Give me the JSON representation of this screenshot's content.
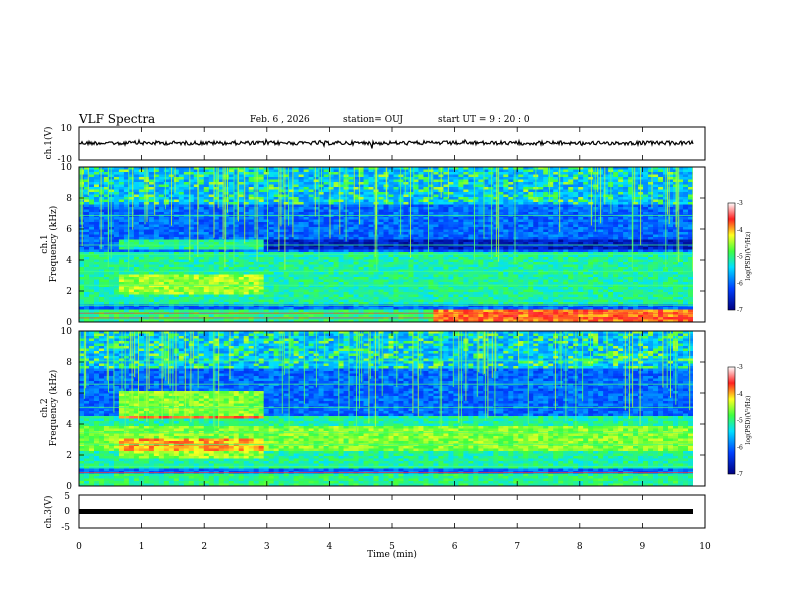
{
  "header": {
    "title": "VLF Spectra",
    "date": "Feb. 6  , 2026",
    "station": "station= OUJ",
    "start_ut": "start  UT  =   9 : 20 : 0"
  },
  "chart_data": [
    {
      "type": "line",
      "panel": "ch1-waveform",
      "ylabel": "ch.1(V)",
      "xlim": [
        0,
        10
      ],
      "ylim": [
        -10,
        10
      ],
      "yticks": [
        "10",
        "-10"
      ],
      "description_level": 0
    },
    {
      "type": "heatmap",
      "panel": "ch1-spectrogram",
      "ylabel": "ch.1\nFrequency (kHz)",
      "ylabel_line1": "ch.1",
      "ylabel_line2": "Frequency (kHz)",
      "xlim": [
        0,
        10
      ],
      "ylim": [
        0,
        10
      ],
      "yticks": [
        "0",
        "2",
        "4",
        "6",
        "8",
        "10"
      ],
      "colorbar": {
        "label": "log(PSD)(V²/Hz)",
        "range": [
          -7,
          -3
        ],
        "ticks": [
          "-3",
          "-4",
          "-5",
          "-6",
          "-7"
        ]
      }
    },
    {
      "type": "heatmap",
      "panel": "ch2-spectrogram",
      "ylabel_line1": "ch.2",
      "ylabel_line2": "Frequency (kHz)",
      "xlim": [
        0,
        10
      ],
      "ylim": [
        0,
        10
      ],
      "yticks": [
        "0",
        "2",
        "4",
        "6",
        "8",
        "10"
      ],
      "colorbar": {
        "label": "log(PSD)(V²/Hz)",
        "range": [
          -7,
          -3
        ],
        "ticks": [
          "-3",
          "-4",
          "-5",
          "-6",
          "-7"
        ]
      }
    },
    {
      "type": "line",
      "panel": "ch3-waveform",
      "ylabel": "ch.3(V)",
      "xlim": [
        0,
        10
      ],
      "ylim": [
        -5,
        5
      ],
      "yticks": [
        "5",
        "0",
        "-5"
      ],
      "level": -1
    }
  ],
  "xaxis": {
    "label": "Time  (min)",
    "ticks": [
      "0",
      "1",
      "2",
      "3",
      "4",
      "5",
      "6",
      "7",
      "8",
      "9",
      "10"
    ]
  },
  "colors": {
    "background_deep": "#00007a",
    "cyan": "#00e0ff",
    "green": "#40ff40",
    "yellow": "#ffff30",
    "red": "#ff2020",
    "trace": "#000000"
  },
  "colorbar_label": "log(PSD)(V²/Hz)"
}
